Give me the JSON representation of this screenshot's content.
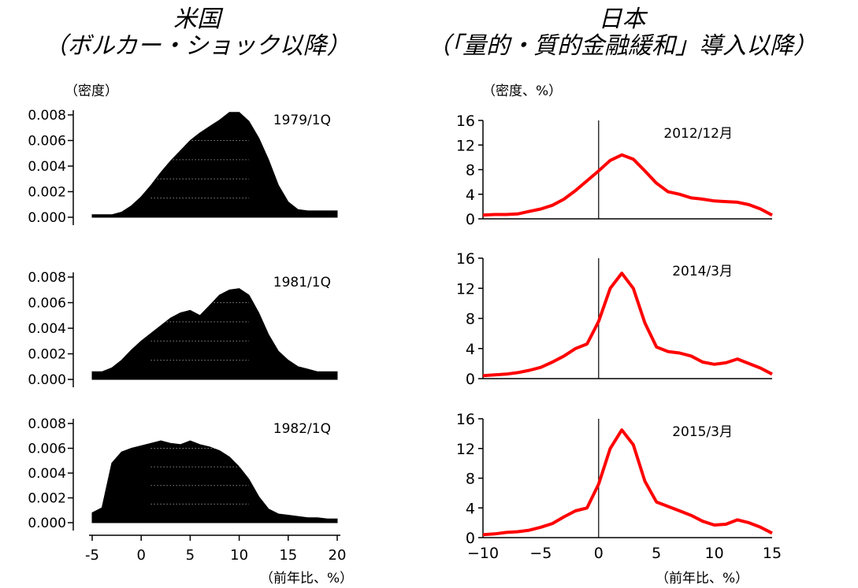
{
  "titles": {
    "left_main": "米国",
    "left_sub": "（ボルカー・ショック以降）",
    "right_main": "日本",
    "right_sub": "（「量的・質的金融緩和」導入以降）"
  },
  "units": {
    "left_y": "（密度）",
    "right_y": "（密度、%）",
    "left_x": "（前年比、%）",
    "right_x": "（前年比、%）"
  },
  "colors": {
    "us_fill": "#000000",
    "jp_line": "#ff0000",
    "axis": "#000000"
  },
  "chart_data": [
    {
      "type": "area",
      "label": "1979/1Q",
      "ylim": [
        0,
        0.008
      ],
      "yticks": [
        "0.008",
        "0.006",
        "0.004",
        "0.002",
        "0.000"
      ],
      "xlim": [
        -5,
        20
      ],
      "x": [
        -5,
        -4,
        -3,
        -2,
        -1,
        0,
        1,
        2,
        3,
        4,
        5,
        6,
        7,
        8,
        9,
        10,
        11,
        12,
        13,
        14,
        15,
        16,
        17,
        18,
        19,
        20
      ],
      "y": [
        0.0002,
        0.0002,
        0.0002,
        0.0004,
        0.0009,
        0.0016,
        0.0025,
        0.0035,
        0.0044,
        0.0052,
        0.006,
        0.0066,
        0.0071,
        0.0076,
        0.0082,
        0.0082,
        0.0075,
        0.0062,
        0.0045,
        0.0025,
        0.0012,
        0.0006,
        0.0005,
        0.0005,
        0.0005,
        0.0005
      ]
    },
    {
      "type": "area",
      "label": "1981/1Q",
      "ylim": [
        0,
        0.008
      ],
      "yticks": [
        "0.008",
        "0.006",
        "0.004",
        "0.002",
        "0.000"
      ],
      "xlim": [
        -5,
        20
      ],
      "x": [
        -5,
        -4,
        -3,
        -2,
        -1,
        0,
        1,
        2,
        3,
        4,
        5,
        6,
        7,
        8,
        9,
        10,
        11,
        12,
        13,
        14,
        15,
        16,
        17,
        18,
        19,
        20
      ],
      "y": [
        0.0006,
        0.0006,
        0.0009,
        0.0015,
        0.0023,
        0.003,
        0.0036,
        0.0042,
        0.0048,
        0.0052,
        0.0054,
        0.005,
        0.0058,
        0.0066,
        0.007,
        0.0071,
        0.0066,
        0.0052,
        0.0035,
        0.0022,
        0.0015,
        0.001,
        0.0008,
        0.0006,
        0.0006,
        0.0006
      ]
    },
    {
      "type": "area",
      "label": "1982/1Q",
      "ylim": [
        0,
        0.008
      ],
      "yticks": [
        "0.008",
        "0.006",
        "0.004",
        "0.002",
        "0.000"
      ],
      "xlim": [
        -5,
        20
      ],
      "x": [
        -5,
        -4,
        -3,
        -2,
        -1,
        0,
        1,
        2,
        3,
        4,
        5,
        6,
        7,
        8,
        9,
        10,
        11,
        12,
        13,
        14,
        15,
        16,
        17,
        18,
        19,
        20
      ],
      "y": [
        0.0008,
        0.0012,
        0.0048,
        0.0057,
        0.006,
        0.0062,
        0.0064,
        0.0066,
        0.0064,
        0.0063,
        0.0066,
        0.0063,
        0.0061,
        0.0058,
        0.0053,
        0.0045,
        0.0035,
        0.0021,
        0.0011,
        0.0007,
        0.0006,
        0.0005,
        0.0004,
        0.0004,
        0.0003,
        0.0003
      ]
    },
    {
      "type": "line",
      "label": "2012/12月",
      "ylim": [
        0,
        16
      ],
      "yticks": [
        "16",
        "12",
        "8",
        "4",
        "0"
      ],
      "xlim": [
        -10,
        15
      ],
      "xticks": [
        "−10",
        "−5",
        "0",
        "5",
        "10",
        "15"
      ],
      "x": [
        -10,
        -9,
        -8,
        -7,
        -6,
        -5,
        -4,
        -3,
        -2,
        -1,
        0,
        1,
        2,
        3,
        4,
        5,
        6,
        7,
        8,
        9,
        10,
        11,
        12,
        13,
        14,
        15
      ],
      "y": [
        0.6,
        0.7,
        0.7,
        0.8,
        1.2,
        1.6,
        2.2,
        3.2,
        4.6,
        6.2,
        7.8,
        9.5,
        10.4,
        9.7,
        7.8,
        5.8,
        4.4,
        4.0,
        3.4,
        3.2,
        2.9,
        2.8,
        2.7,
        2.3,
        1.6,
        0.6
      ]
    },
    {
      "type": "line",
      "label": "2014/3月",
      "ylim": [
        0,
        16
      ],
      "yticks": [
        "16",
        "12",
        "8",
        "4",
        "0"
      ],
      "xlim": [
        -10,
        15
      ],
      "xticks": [
        "−10",
        "−5",
        "0",
        "5",
        "10",
        "15"
      ],
      "x": [
        -10,
        -9,
        -8,
        -7,
        -6,
        -5,
        -4,
        -3,
        -2,
        -1,
        0,
        1,
        2,
        3,
        4,
        5,
        6,
        7,
        8,
        9,
        10,
        11,
        12,
        13,
        14,
        15
      ],
      "y": [
        0.4,
        0.5,
        0.6,
        0.8,
        1.1,
        1.5,
        2.2,
        3.0,
        4.0,
        4.6,
        7.6,
        12.0,
        14.0,
        12.0,
        7.4,
        4.2,
        3.6,
        3.4,
        3.0,
        2.2,
        1.9,
        2.1,
        2.6,
        2.0,
        1.4,
        0.6
      ]
    },
    {
      "type": "line",
      "label": "2015/3月",
      "ylim": [
        0,
        16
      ],
      "yticks": [
        "16",
        "12",
        "8",
        "4",
        "0"
      ],
      "xlim": [
        -10,
        15
      ],
      "xticks": [
        "−10",
        "−5",
        "0",
        "5",
        "10",
        "15"
      ],
      "x": [
        -10,
        -9,
        -8,
        -7,
        -6,
        -5,
        -4,
        -3,
        -2,
        -1,
        0,
        1,
        2,
        3,
        4,
        5,
        6,
        7,
        8,
        9,
        10,
        11,
        12,
        13,
        14,
        15
      ],
      "y": [
        0.4,
        0.5,
        0.7,
        0.8,
        1.0,
        1.4,
        1.9,
        2.8,
        3.6,
        4.0,
        7.2,
        12.0,
        14.5,
        12.5,
        7.6,
        4.8,
        4.2,
        3.6,
        3.0,
        2.2,
        1.7,
        1.8,
        2.4,
        2.0,
        1.4,
        0.6
      ]
    }
  ],
  "us_xticks": [
    "-5",
    "0",
    "5",
    "10",
    "15",
    "20"
  ]
}
